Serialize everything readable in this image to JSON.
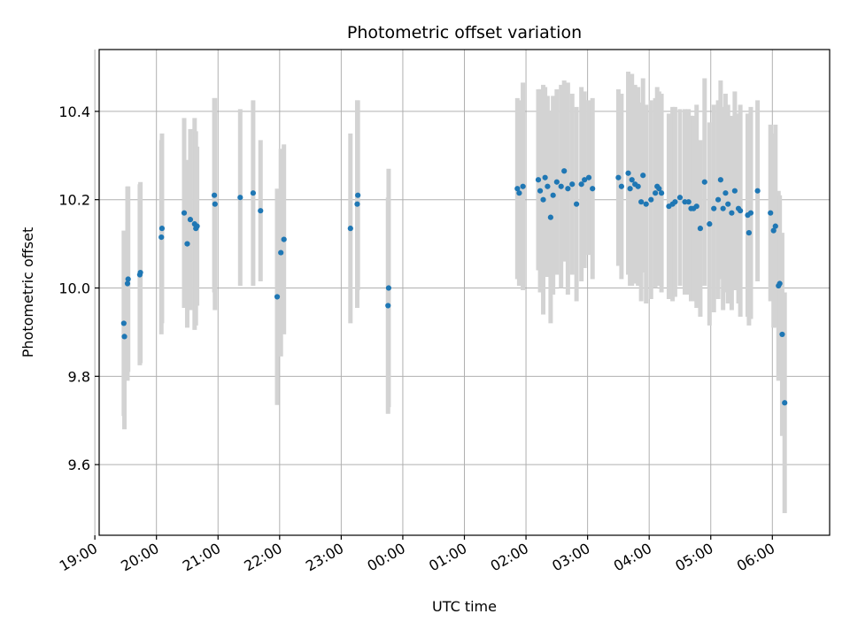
{
  "chart_data": {
    "type": "scatter",
    "title": "Photometric offset variation",
    "xlabel": "UTC time",
    "ylabel": "Photometric offset",
    "x_unit": "hours relative to 00:00 UTC",
    "xlim": [
      -4.93,
      6.93
    ],
    "ylim": [
      9.44,
      10.54
    ],
    "yticks": [
      9.6,
      9.8,
      10.0,
      10.2,
      10.4
    ],
    "ytick_labels": [
      "9.6",
      "9.8",
      "10.0",
      "10.2",
      "10.4"
    ],
    "xticks": [
      -5,
      -4,
      -3,
      -2,
      -1,
      0,
      1,
      2,
      3,
      4,
      5,
      6
    ],
    "xtick_labels": [
      "19:00",
      "20:00",
      "21:00",
      "22:00",
      "23:00",
      "00:00",
      "01:00",
      "02:00",
      "03:00",
      "04:00",
      "05:00",
      "06:00"
    ],
    "grid": true,
    "colors": {
      "point": "#1f77b4",
      "errorbar": "#d3d3d3",
      "grid": "#b0b0b0"
    },
    "series": [
      {
        "x": [
          -4.53,
          -4.52,
          -4.47,
          -4.46,
          -4.27,
          -4.26,
          -3.92,
          -3.91,
          -3.55,
          -3.5,
          -3.45,
          -3.38,
          -3.36,
          -3.34,
          -3.06,
          -3.05,
          -2.64,
          -2.43,
          -2.31,
          -2.04,
          -1.98,
          -1.93,
          -0.85,
          -0.74,
          -0.73,
          -0.24,
          -0.23,
          1.86,
          1.89,
          1.95,
          2.2,
          2.23,
          2.28,
          2.31,
          2.35,
          2.4,
          2.44,
          2.5,
          2.57,
          2.62,
          2.68,
          2.75,
          2.82,
          2.9,
          2.95,
          3.02,
          3.08,
          3.5,
          3.55,
          3.66,
          3.69,
          3.72,
          3.77,
          3.82,
          3.87,
          3.9,
          3.95,
          4.03,
          4.1,
          4.13,
          4.16,
          4.2,
          4.32,
          4.38,
          4.42,
          4.5,
          4.58,
          4.64,
          4.68,
          4.72,
          4.77,
          4.83,
          4.9,
          4.98,
          5.05,
          5.12,
          5.16,
          5.2,
          5.24,
          5.28,
          5.34,
          5.39,
          5.45,
          5.48,
          5.6,
          5.62,
          5.65,
          5.76,
          5.97,
          6.02,
          6.05,
          6.1,
          6.12,
          6.16,
          6.2
        ],
        "y": [
          9.92,
          9.89,
          10.01,
          10.02,
          10.03,
          10.035,
          10.115,
          10.135,
          10.17,
          10.1,
          10.155,
          10.145,
          10.135,
          10.14,
          10.21,
          10.19,
          10.205,
          10.215,
          10.175,
          9.98,
          10.08,
          10.11,
          10.135,
          10.19,
          10.21,
          9.96,
          10.0,
          10.225,
          10.215,
          10.23,
          10.245,
          10.22,
          10.2,
          10.25,
          10.23,
          10.16,
          10.21,
          10.24,
          10.23,
          10.265,
          10.225,
          10.235,
          10.19,
          10.235,
          10.245,
          10.25,
          10.225,
          10.25,
          10.23,
          10.26,
          10.225,
          10.245,
          10.235,
          10.23,
          10.195,
          10.255,
          10.19,
          10.2,
          10.215,
          10.23,
          10.225,
          10.215,
          10.185,
          10.19,
          10.195,
          10.205,
          10.195,
          10.195,
          10.18,
          10.18,
          10.185,
          10.135,
          10.24,
          10.145,
          10.18,
          10.2,
          10.245,
          10.18,
          10.215,
          10.19,
          10.17,
          10.22,
          10.18,
          10.175,
          10.165,
          10.125,
          10.17,
          10.22,
          10.17,
          10.13,
          10.14,
          10.005,
          10.01,
          9.895,
          9.74
        ],
        "err": [
          0.21,
          0.21,
          0.22,
          0.21,
          0.205,
          0.205,
          0.22,
          0.215,
          0.215,
          0.19,
          0.205,
          0.24,
          0.22,
          0.18,
          0.22,
          0.24,
          0.2,
          0.21,
          0.16,
          0.245,
          0.235,
          0.215,
          0.215,
          0.235,
          0.215,
          0.245,
          0.27,
          0.205,
          0.21,
          0.235,
          0.205,
          0.23,
          0.26,
          0.205,
          0.205,
          0.24,
          0.225,
          0.21,
          0.23,
          0.205,
          0.24,
          0.205,
          0.22,
          0.22,
          0.2,
          0.175,
          0.205,
          0.2,
          0.21,
          0.23,
          0.22,
          0.24,
          0.225,
          0.225,
          0.225,
          0.22,
          0.225,
          0.225,
          0.215,
          0.225,
          0.22,
          0.225,
          0.21,
          0.22,
          0.215,
          0.2,
          0.21,
          0.21,
          0.21,
          0.21,
          0.23,
          0.2,
          0.235,
          0.23,
          0.235,
          0.225,
          0.225,
          0.23,
          0.225,
          0.225,
          0.22,
          0.225,
          0.215,
          0.24,
          0.23,
          0.21,
          0.24,
          0.205,
          0.2,
          0.22,
          0.23,
          0.215,
          0.2,
          0.23,
          0.25
        ]
      }
    ]
  }
}
